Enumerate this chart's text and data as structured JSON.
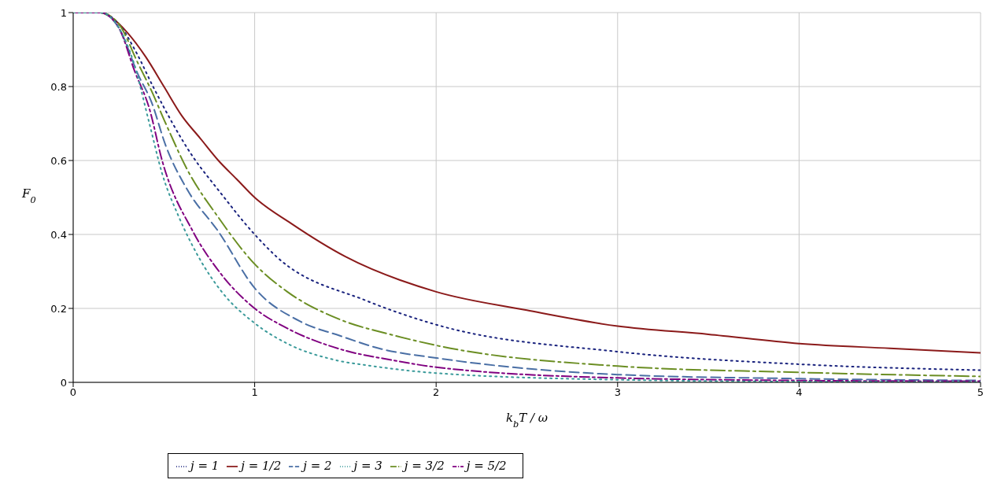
{
  "chart_data": {
    "type": "line",
    "xlabel": "k$_{b}$T / ω",
    "ylabel": "F$_{0}$",
    "xlim": [
      0,
      5
    ],
    "ylim": [
      0,
      1
    ],
    "xticks": [
      0,
      1,
      2,
      3,
      4,
      5
    ],
    "yticks": [
      0,
      0.2,
      0.4,
      0.6,
      0.8,
      1
    ],
    "grid": true,
    "legend": "bottom",
    "marker": "none",
    "series": [
      {
        "name": "j = 1/2",
        "color": "#8b1a1a",
        "line_style": "solid",
        "x": [
          0,
          0.15,
          0.2,
          0.3,
          0.4,
          0.5,
          0.6,
          0.7,
          0.8,
          0.9,
          1,
          1.2,
          1.5,
          2,
          2.5,
          3,
          3.5,
          4,
          4.5,
          5
        ],
        "values": [
          1,
          1,
          0.99,
          0.945,
          0.88,
          0.8,
          0.72,
          0.66,
          0.6,
          0.55,
          0.5,
          0.43,
          0.34,
          0.245,
          0.195,
          0.152,
          0.13,
          0.105,
          0.092,
          0.08
        ]
      },
      {
        "name": "j = 1",
        "color": "#1a237e",
        "line_style": "dotted",
        "x": [
          0,
          0.15,
          0.25,
          0.35,
          0.44,
          0.66,
          0.8,
          1,
          1.12,
          1.62,
          2,
          3,
          4,
          5
        ],
        "values": [
          1,
          1,
          0.97,
          0.89,
          0.8,
          0.61,
          0.52,
          0.4,
          0.34,
          0.22,
          0.156,
          0.083,
          0.049,
          0.033
        ]
      },
      {
        "name": "j = 3/2",
        "color": "#6b8e23",
        "line_style": "dashed",
        "x": [
          0,
          0.15,
          0.25,
          0.36,
          0.43,
          0.51,
          0.63,
          0.8,
          1,
          1.18,
          1.47,
          1.76,
          2,
          3,
          4,
          5
        ],
        "values": [
          1,
          1,
          0.97,
          0.86,
          0.79,
          0.7,
          0.574,
          0.446,
          0.32,
          0.245,
          0.17,
          0.128,
          0.1,
          0.044,
          0.027,
          0.016
        ]
      },
      {
        "name": "j = 2",
        "color": "#4a6fa5",
        "line_style": "dashed",
        "x": [
          0,
          0.15,
          0.25,
          0.36,
          0.43,
          0.51,
          0.63,
          0.8,
          1,
          1.25,
          1.47,
          1.7,
          2,
          3,
          4,
          5
        ],
        "values": [
          1,
          1,
          0.96,
          0.83,
          0.76,
          0.64,
          0.52,
          0.408,
          0.255,
          0.165,
          0.126,
          0.09,
          0.066,
          0.021,
          0.01,
          0.005
        ]
      },
      {
        "name": "j = 5/2",
        "color": "#800080",
        "line_style": "dashed",
        "x": [
          0,
          0.15,
          0.25,
          0.34,
          0.42,
          0.49,
          0.66,
          0.81,
          1,
          1.18,
          1.47,
          1.76,
          2,
          3,
          4,
          5
        ],
        "values": [
          1,
          1,
          0.96,
          0.84,
          0.74,
          0.6,
          0.408,
          0.296,
          0.2,
          0.146,
          0.09,
          0.06,
          0.041,
          0.012,
          0.005,
          0.003
        ]
      },
      {
        "name": "j = 3",
        "color": "#3a9a9a",
        "line_style": "dotted",
        "x": [
          0,
          0.15,
          0.25,
          0.33,
          0.42,
          0.49,
          0.58,
          0.69,
          0.82,
          1,
          1.2,
          1.43,
          1.65,
          2,
          3,
          4,
          5
        ],
        "values": [
          1,
          1,
          0.96,
          0.87,
          0.7,
          0.565,
          0.45,
          0.34,
          0.244,
          0.16,
          0.1,
          0.062,
          0.044,
          0.025,
          0.007,
          0.002,
          0.001
        ]
      }
    ]
  }
}
